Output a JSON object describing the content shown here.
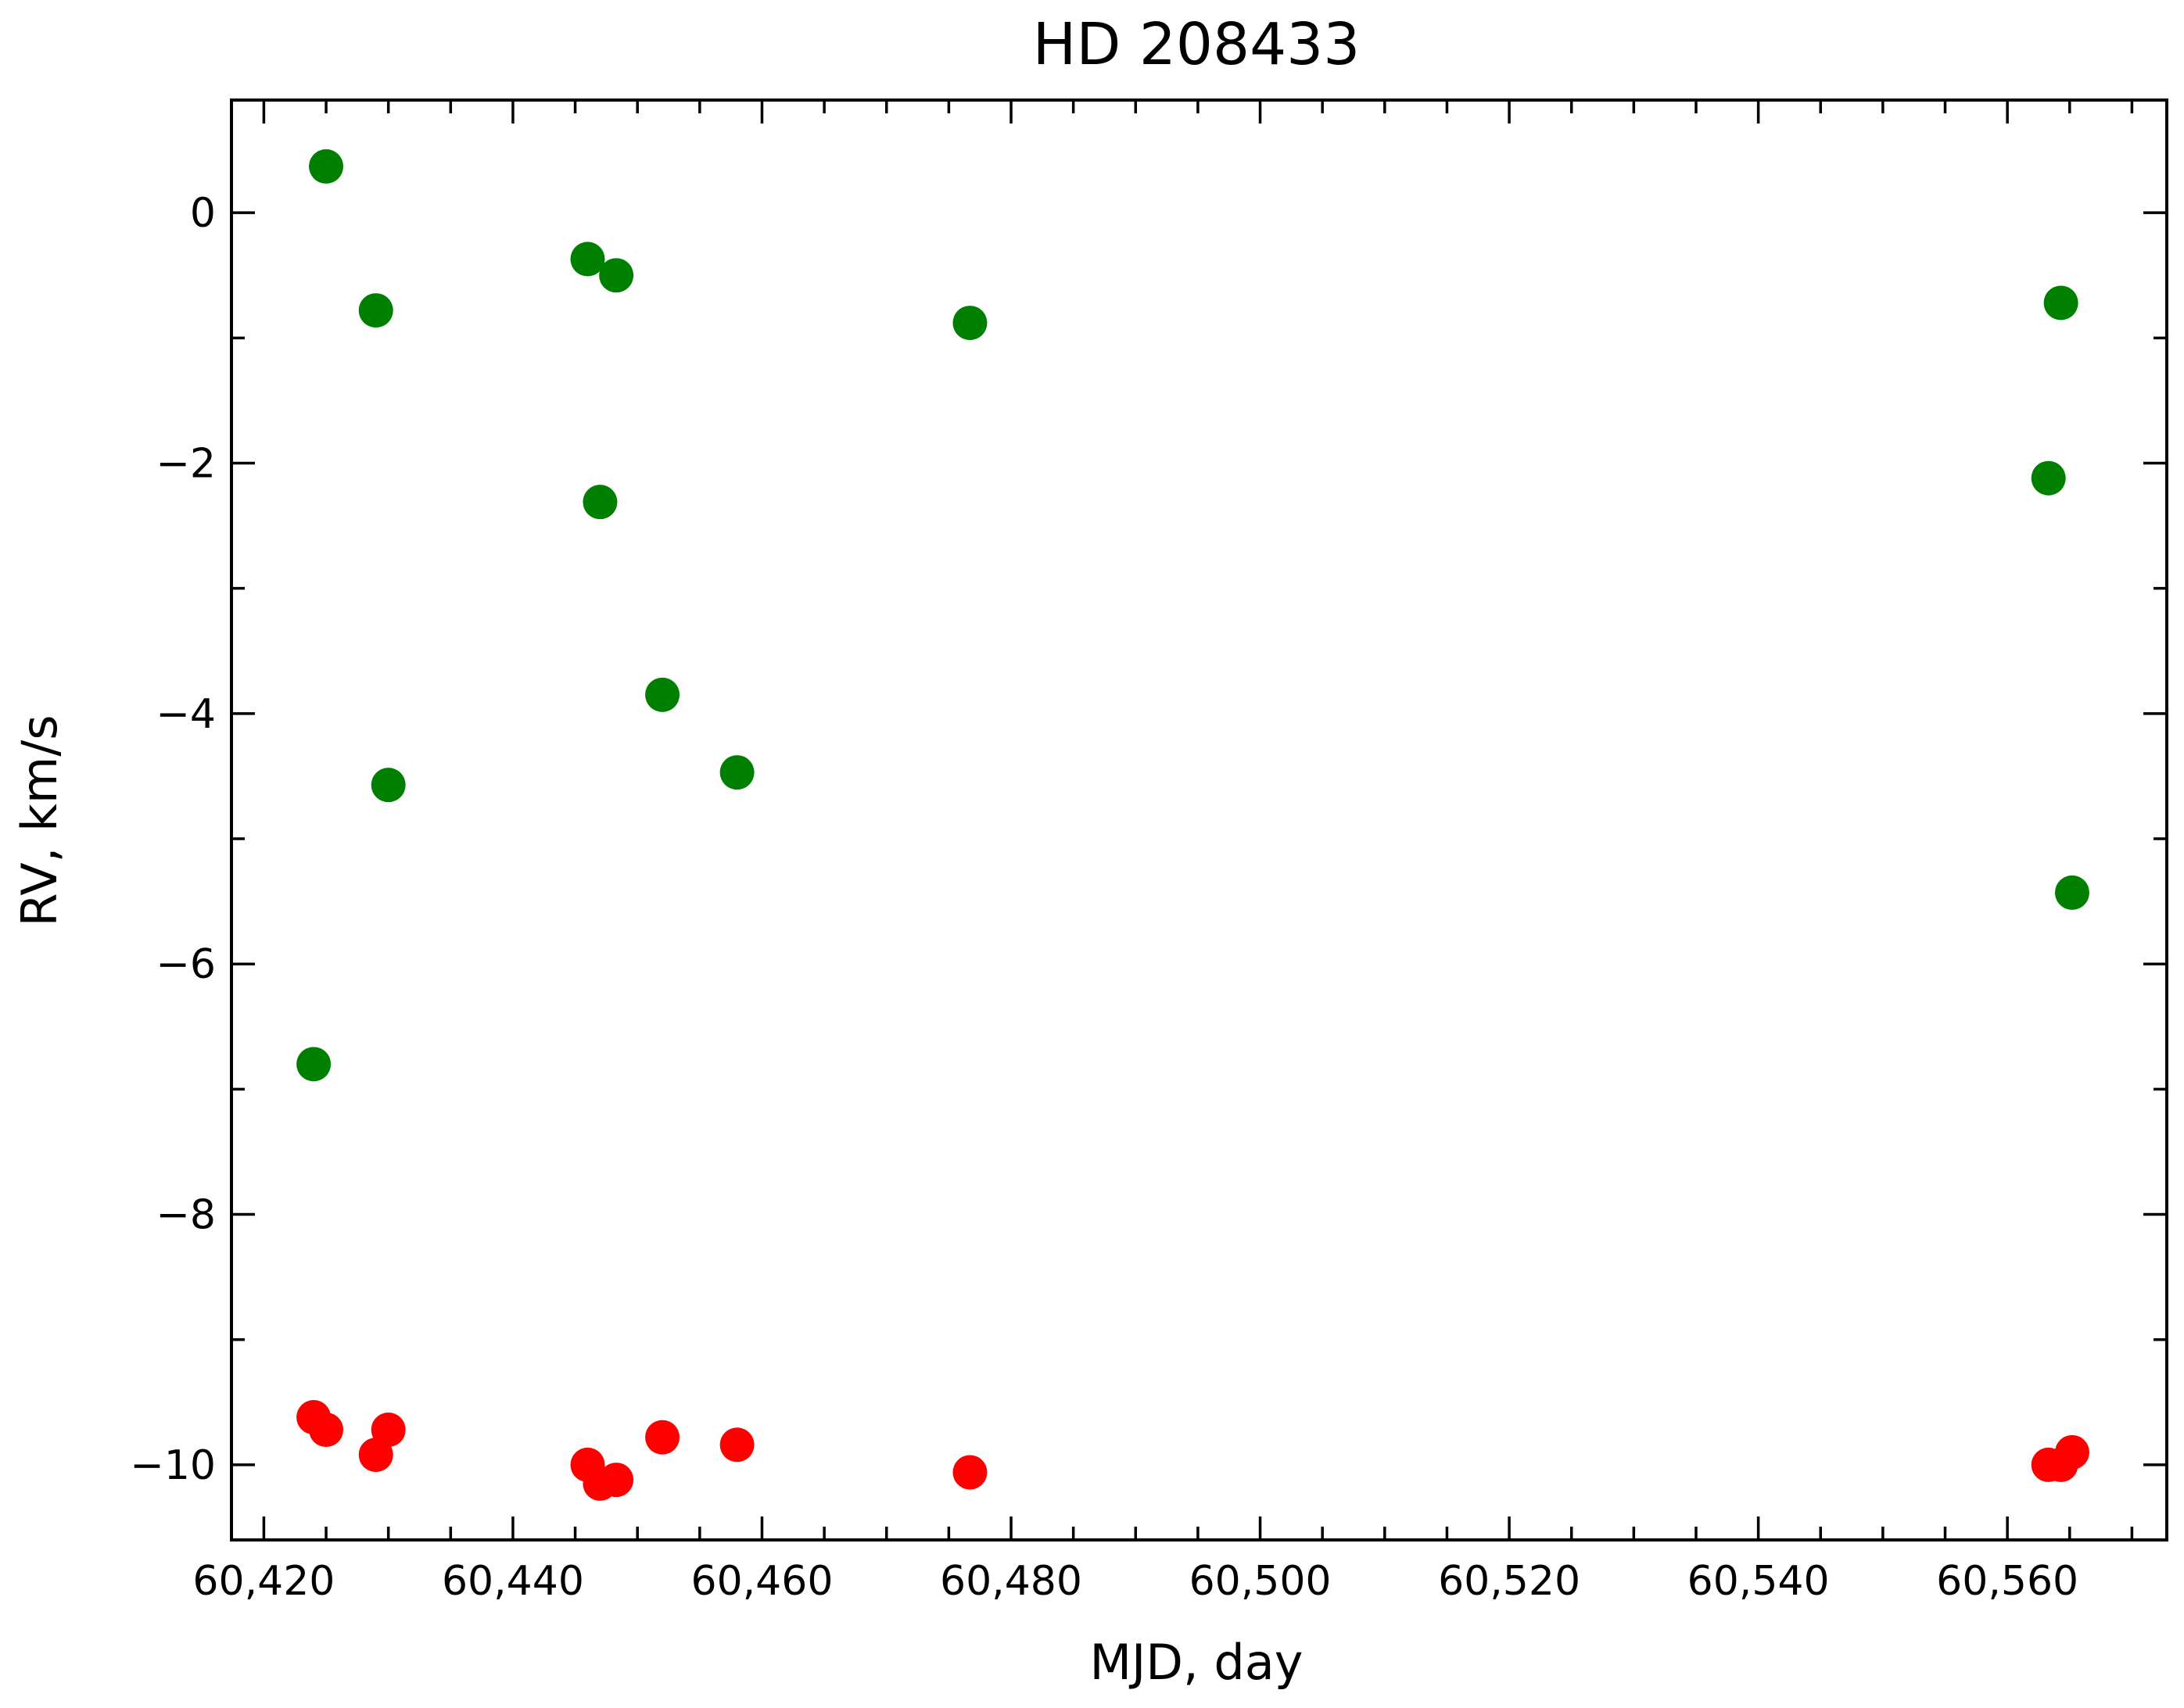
{
  "chart_data": {
    "type": "scatter",
    "title": "HD 208433",
    "xlabel": "MJD, day",
    "ylabel": "RV, km/s",
    "xlim": [
      60417.4,
      60572.8
    ],
    "ylim": [
      -10.6,
      0.9
    ],
    "x_ticks": [
      60420,
      60440,
      60460,
      60480,
      60500,
      60520,
      60540,
      60560
    ],
    "x_tick_labels": [
      "60,420",
      "60,440",
      "60,460",
      "60,480",
      "60,500",
      "60,520",
      "60,540",
      "60,560"
    ],
    "x_minor_step": 5,
    "y_ticks": [
      0,
      -2,
      -4,
      -6,
      -8,
      -10
    ],
    "y_tick_labels": [
      "0",
      "−2",
      "−4",
      "−6",
      "−8",
      "−10"
    ],
    "y_minor_step": 1,
    "grid": false,
    "legend": "none",
    "series": [
      {
        "color": "#008000",
        "points": [
          {
            "x": 60424.0,
            "y": -6.8
          },
          {
            "x": 60425.0,
            "y": 0.37
          },
          {
            "x": 60429.0,
            "y": -0.78
          },
          {
            "x": 60430.0,
            "y": -4.57
          },
          {
            "x": 60446.0,
            "y": -0.37
          },
          {
            "x": 60447.0,
            "y": -2.31
          },
          {
            "x": 60448.3,
            "y": -0.5
          },
          {
            "x": 60452.0,
            "y": -3.85
          },
          {
            "x": 60458.0,
            "y": -4.47
          },
          {
            "x": 60476.7,
            "y": -0.88
          },
          {
            "x": 60563.3,
            "y": -2.12
          },
          {
            "x": 60564.3,
            "y": -0.72
          },
          {
            "x": 60565.2,
            "y": -5.43
          }
        ]
      },
      {
        "color": "#ff0000",
        "points": [
          {
            "x": 60424.0,
            "y": -9.62
          },
          {
            "x": 60425.0,
            "y": -9.72
          },
          {
            "x": 60429.0,
            "y": -9.92
          },
          {
            "x": 60430.0,
            "y": -9.72
          },
          {
            "x": 60446.0,
            "y": -10.0
          },
          {
            "x": 60447.0,
            "y": -10.15
          },
          {
            "x": 60448.3,
            "y": -10.12
          },
          {
            "x": 60452.0,
            "y": -9.78
          },
          {
            "x": 60458.0,
            "y": -9.84
          },
          {
            "x": 60476.7,
            "y": -10.06
          },
          {
            "x": 60563.3,
            "y": -10.0
          },
          {
            "x": 60564.3,
            "y": -10.0
          },
          {
            "x": 60565.2,
            "y": -9.9
          }
        ]
      }
    ]
  }
}
